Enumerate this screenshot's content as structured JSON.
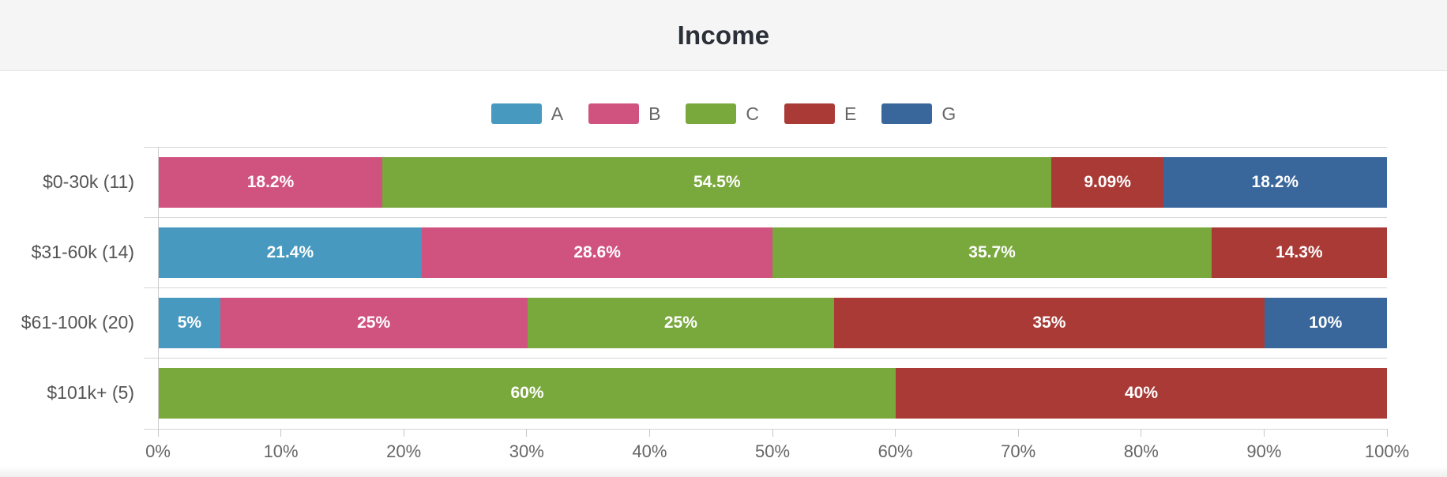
{
  "header": {
    "title": "Income"
  },
  "chart_data": {
    "type": "bar",
    "orientation": "horizontal",
    "stacked": true,
    "stacking": "percent",
    "title": "Income",
    "categories": [
      "$0-30k (11)",
      "$31-60k (14)",
      "$61-100k (20)",
      "$101k+ (5)"
    ],
    "series": [
      {
        "name": "A",
        "color": "#4899BF",
        "values": [
          0,
          21.4,
          5,
          0
        ],
        "labels": [
          "",
          "21.4%",
          "5%",
          ""
        ]
      },
      {
        "name": "B",
        "color": "#D0537F",
        "values": [
          18.2,
          28.6,
          25,
          0
        ],
        "labels": [
          "18.2%",
          "28.6%",
          "25%",
          ""
        ]
      },
      {
        "name": "C",
        "color": "#79A83C",
        "values": [
          54.5,
          35.7,
          25,
          60
        ],
        "labels": [
          "54.5%",
          "35.7%",
          "25%",
          "60%"
        ]
      },
      {
        "name": "E",
        "color": "#A93A36",
        "values": [
          9.09,
          14.3,
          35,
          40
        ],
        "labels": [
          "9.09%",
          "14.3%",
          "35%",
          "40%"
        ]
      },
      {
        "name": "G",
        "color": "#3A679B",
        "values": [
          18.2,
          0,
          10,
          0
        ],
        "labels": [
          "18.2%",
          "",
          "10%",
          ""
        ]
      }
    ],
    "xlabel": "",
    "ylabel": "",
    "x_axis": {
      "min": 0,
      "max": 100,
      "tick_labels": [
        "0%",
        "10%",
        "20%",
        "30%",
        "40%",
        "50%",
        "60%",
        "70%",
        "80%",
        "90%",
        "100%"
      ]
    },
    "grid": true,
    "legend_position": "top-center",
    "value_label_color": "#ffffff",
    "axis_label_color": "#666666",
    "category_label_color": "#555555",
    "grid_color": "#d6d6d6"
  }
}
